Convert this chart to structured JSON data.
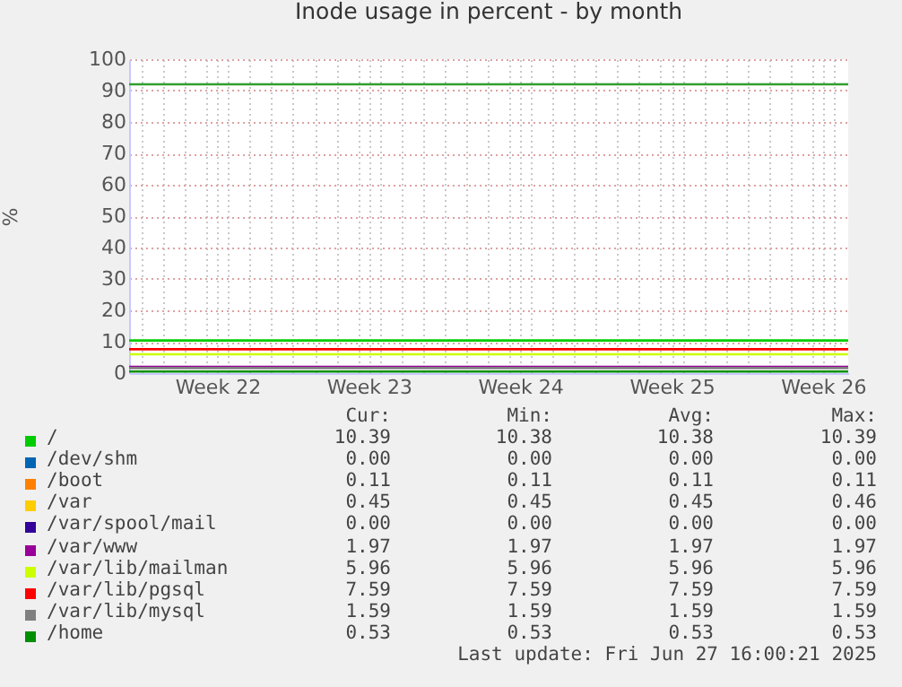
{
  "chart_data": {
    "type": "line",
    "title": "Inode usage in percent - by month",
    "ylabel": "%",
    "x": [
      "2025-05-25T10:00",
      "2025-06-27T16:00"
    ],
    "series": [
      {
        "name": "/",
        "color": "#00cc00",
        "values": [
          10.4,
          10.4
        ]
      },
      {
        "name": "/dev/shm",
        "color": "#0066b3",
        "values": [
          null,
          null
        ]
      },
      {
        "name": "/boot",
        "color": "#ff8000",
        "values": [
          null,
          null
        ]
      },
      {
        "name": "/var",
        "color": "#ffcc00",
        "values": [
          null,
          null
        ]
      },
      {
        "name": "/var/spool/mail",
        "color": "#330099",
        "values": [
          null,
          null
        ]
      },
      {
        "name": "/var/www",
        "color": "#990099",
        "values": [
          2.0,
          2.0
        ]
      },
      {
        "name": "/var/lib/mailman",
        "color": "#ccff00",
        "values": [
          6.0,
          6.0
        ]
      },
      {
        "name": "/var/lib/pgsql",
        "color": "#ff0000",
        "values": [
          7.6,
          7.6
        ]
      },
      {
        "name": "/var/lib/mysql",
        "color": "#808080",
        "values": [
          1.6,
          1.6
        ]
      },
      {
        "name": "/home",
        "color": "#008f00",
        "values": [
          0.5,
          0.5
        ]
      }
    ],
    "xlim": [
      "2025-05-25T10:00",
      "2025-06-27T16:00"
    ],
    "xticks": [
      {
        "value": "2025-05-29T12:00",
        "label": "Week 22"
      },
      {
        "value": "2025-06-05T12:00",
        "label": "Week 23"
      },
      {
        "value": "2025-06-12T12:00",
        "label": "Week 24"
      },
      {
        "value": "2025-06-19T12:00",
        "label": "Week 25"
      },
      {
        "value": "2025-06-26T12:00",
        "label": "Week 26"
      },
      {
        "value": "2025-05-26",
        "label": null
      },
      {
        "value": "2025-05-27",
        "label": null
      },
      {
        "value": "2025-05-28",
        "label": null
      },
      {
        "value": "2025-05-29",
        "label": null
      },
      {
        "value": "2025-05-30",
        "label": null
      },
      {
        "value": "2025-05-31",
        "label": null
      },
      {
        "value": "2025-06-01",
        "label": null
      },
      {
        "value": "2025-06-02",
        "label": null
      },
      {
        "value": "2025-06-03",
        "label": null
      },
      {
        "value": "2025-06-04",
        "label": null
      },
      {
        "value": "2025-06-05",
        "label": null
      },
      {
        "value": "2025-06-06",
        "label": null
      },
      {
        "value": "2025-06-07",
        "label": null
      },
      {
        "value": "2025-06-08",
        "label": null
      },
      {
        "value": "2025-06-09",
        "label": null
      },
      {
        "value": "2025-06-10",
        "label": null
      },
      {
        "value": "2025-06-11",
        "label": null
      },
      {
        "value": "2025-06-12",
        "label": null
      },
      {
        "value": "2025-06-13",
        "label": null
      },
      {
        "value": "2025-06-14",
        "label": null
      },
      {
        "value": "2025-06-15",
        "label": null
      },
      {
        "value": "2025-06-16",
        "label": null
      },
      {
        "value": "2025-06-17",
        "label": null
      },
      {
        "value": "2025-06-18",
        "label": null
      },
      {
        "value": "2025-06-19",
        "label": null
      },
      {
        "value": "2025-06-20",
        "label": null
      },
      {
        "value": "2025-06-21",
        "label": null
      },
      {
        "value": "2025-06-22",
        "label": null
      },
      {
        "value": "2025-06-23",
        "label": null
      },
      {
        "value": "2025-06-24",
        "label": null
      },
      {
        "value": "2025-06-25",
        "label": null
      },
      {
        "value": "2025-06-26",
        "label": null
      },
      {
        "value": "2025-06-27",
        "label": null
      }
    ],
    "ylim": [
      0,
      100
    ],
    "yticks": [
      0,
      10,
      20,
      30,
      40,
      50,
      60,
      70,
      80,
      90,
      100
    ],
    "grid": true,
    "legend": "bottom",
    "ref_lines": [
      {
        "axis": "y",
        "value": 92,
        "color": "#2f9f2f"
      }
    ],
    "annotations": [
      "Cur:",
      "Min:",
      "Avg:",
      "Max:",
      "10.39",
      "10.38",
      "10.38",
      "10.39",
      "0.00",
      "0.00",
      "0.00",
      "0.00",
      "0.11",
      "0.11",
      "0.11",
      "0.11",
      "0.45",
      "0.45",
      "0.45",
      "0.46",
      "0.00",
      "0.00",
      "0.00",
      "0.00",
      "1.97",
      "1.97",
      "1.97",
      "1.97",
      "5.96",
      "5.96",
      "5.96",
      "5.96",
      "7.59",
      "7.59",
      "7.59",
      "7.59",
      "1.59",
      "1.59",
      "1.59",
      "1.59",
      "0.53",
      "0.53",
      "0.53",
      "0.53",
      "Last update: Fri Jun 27 16:00:21 2025"
    ]
  }
}
